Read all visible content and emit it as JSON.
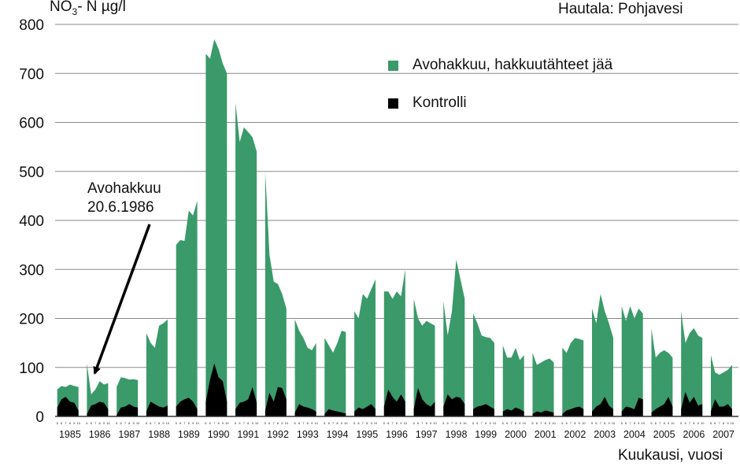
{
  "chart_data": {
    "type": "area",
    "title": "Hautala: Pohjavesi",
    "ylabel": {
      "main": "NO",
      "sub": "3",
      "rest": "- N µg/l"
    },
    "xlabel": "Kuukausi, vuosi",
    "ylim": [
      0,
      800
    ],
    "yticks": [
      0,
      100,
      200,
      300,
      400,
      500,
      600,
      700,
      800
    ],
    "grid": true,
    "legend_position": "top-right",
    "months_label": [
      "5",
      "6",
      "7",
      "8",
      "9",
      "10"
    ],
    "years": [
      "1985",
      "1986",
      "1987",
      "1988",
      "1989",
      "1990",
      "1991",
      "1992",
      "1993",
      "1994",
      "1995",
      "1996",
      "1997",
      "1998",
      "1999",
      "2000",
      "2001",
      "2002",
      "2003",
      "2004",
      "2005",
      "2006",
      "2007"
    ],
    "series": [
      {
        "name": "Avohakkuu, hakkuutähteet jää",
        "color": "#3a9a6a",
        "values": [
          [
            55,
            62,
            60,
            65,
            62,
            60
          ],
          [
            108,
            45,
            55,
            72,
            65,
            68
          ],
          [
            60,
            80,
            78,
            75,
            76,
            74
          ],
          [
            170,
            150,
            140,
            185,
            190,
            198
          ],
          [
            350,
            360,
            358,
            420,
            410,
            440
          ],
          [
            740,
            730,
            770,
            750,
            720,
            700
          ],
          [
            640,
            560,
            590,
            580,
            570,
            540
          ],
          [
            500,
            330,
            275,
            270,
            250,
            220
          ],
          [
            198,
            175,
            160,
            140,
            135,
            150
          ],
          [
            160,
            145,
            130,
            150,
            175,
            172
          ],
          [
            215,
            200,
            250,
            240,
            260,
            280
          ],
          [
            255,
            255,
            240,
            255,
            245,
            300
          ],
          [
            240,
            200,
            185,
            195,
            190,
            185
          ],
          [
            235,
            165,
            215,
            320,
            280,
            240
          ],
          [
            210,
            190,
            165,
            162,
            160,
            150
          ],
          [
            145,
            120,
            120,
            140,
            115,
            125
          ],
          [
            130,
            105,
            110,
            115,
            118,
            110
          ],
          [
            140,
            130,
            150,
            160,
            158,
            155
          ],
          [
            220,
            190,
            250,
            215,
            190,
            160
          ],
          [
            225,
            195,
            225,
            200,
            220,
            210
          ],
          [
            180,
            120,
            130,
            135,
            130,
            120
          ],
          [
            215,
            150,
            170,
            180,
            165,
            160
          ],
          [
            125,
            90,
            85,
            90,
            95,
            105
          ]
        ]
      },
      {
        "name": "Kontrolli",
        "color": "#000000",
        "values": [
          [
            18,
            35,
            40,
            30,
            28,
            12
          ],
          [
            5,
            22,
            25,
            30,
            28,
            15
          ],
          [
            3,
            18,
            20,
            25,
            20,
            18
          ],
          [
            10,
            30,
            25,
            20,
            18,
            22
          ],
          [
            20,
            30,
            35,
            38,
            30,
            15
          ],
          [
            30,
            75,
            108,
            80,
            72,
            30
          ],
          [
            15,
            28,
            30,
            35,
            60,
            28
          ],
          [
            12,
            48,
            30,
            60,
            58,
            35
          ],
          [
            8,
            25,
            20,
            18,
            15,
            10
          ],
          [
            5,
            15,
            12,
            10,
            8,
            6
          ],
          [
            10,
            18,
            15,
            20,
            25,
            15
          ],
          [
            20,
            55,
            40,
            30,
            45,
            30
          ],
          [
            15,
            58,
            35,
            25,
            20,
            30
          ],
          [
            20,
            45,
            35,
            40,
            38,
            25
          ],
          [
            15,
            20,
            22,
            25,
            20,
            15
          ],
          [
            10,
            15,
            12,
            18,
            15,
            10
          ],
          [
            5,
            10,
            8,
            12,
            10,
            8
          ],
          [
            5,
            12,
            15,
            18,
            20,
            15
          ],
          [
            10,
            20,
            25,
            40,
            22,
            15
          ],
          [
            10,
            20,
            18,
            15,
            38,
            35
          ],
          [
            8,
            15,
            20,
            25,
            40,
            20
          ],
          [
            15,
            50,
            28,
            40,
            22,
            25
          ],
          [
            10,
            35,
            20,
            20,
            25,
            15
          ]
        ]
      }
    ],
    "annotations": [
      {
        "text_lines": [
          "Avohakkuu",
          "20.6.1986"
        ],
        "arrow_target": {
          "year": "1986",
          "month": "5"
        }
      }
    ]
  }
}
